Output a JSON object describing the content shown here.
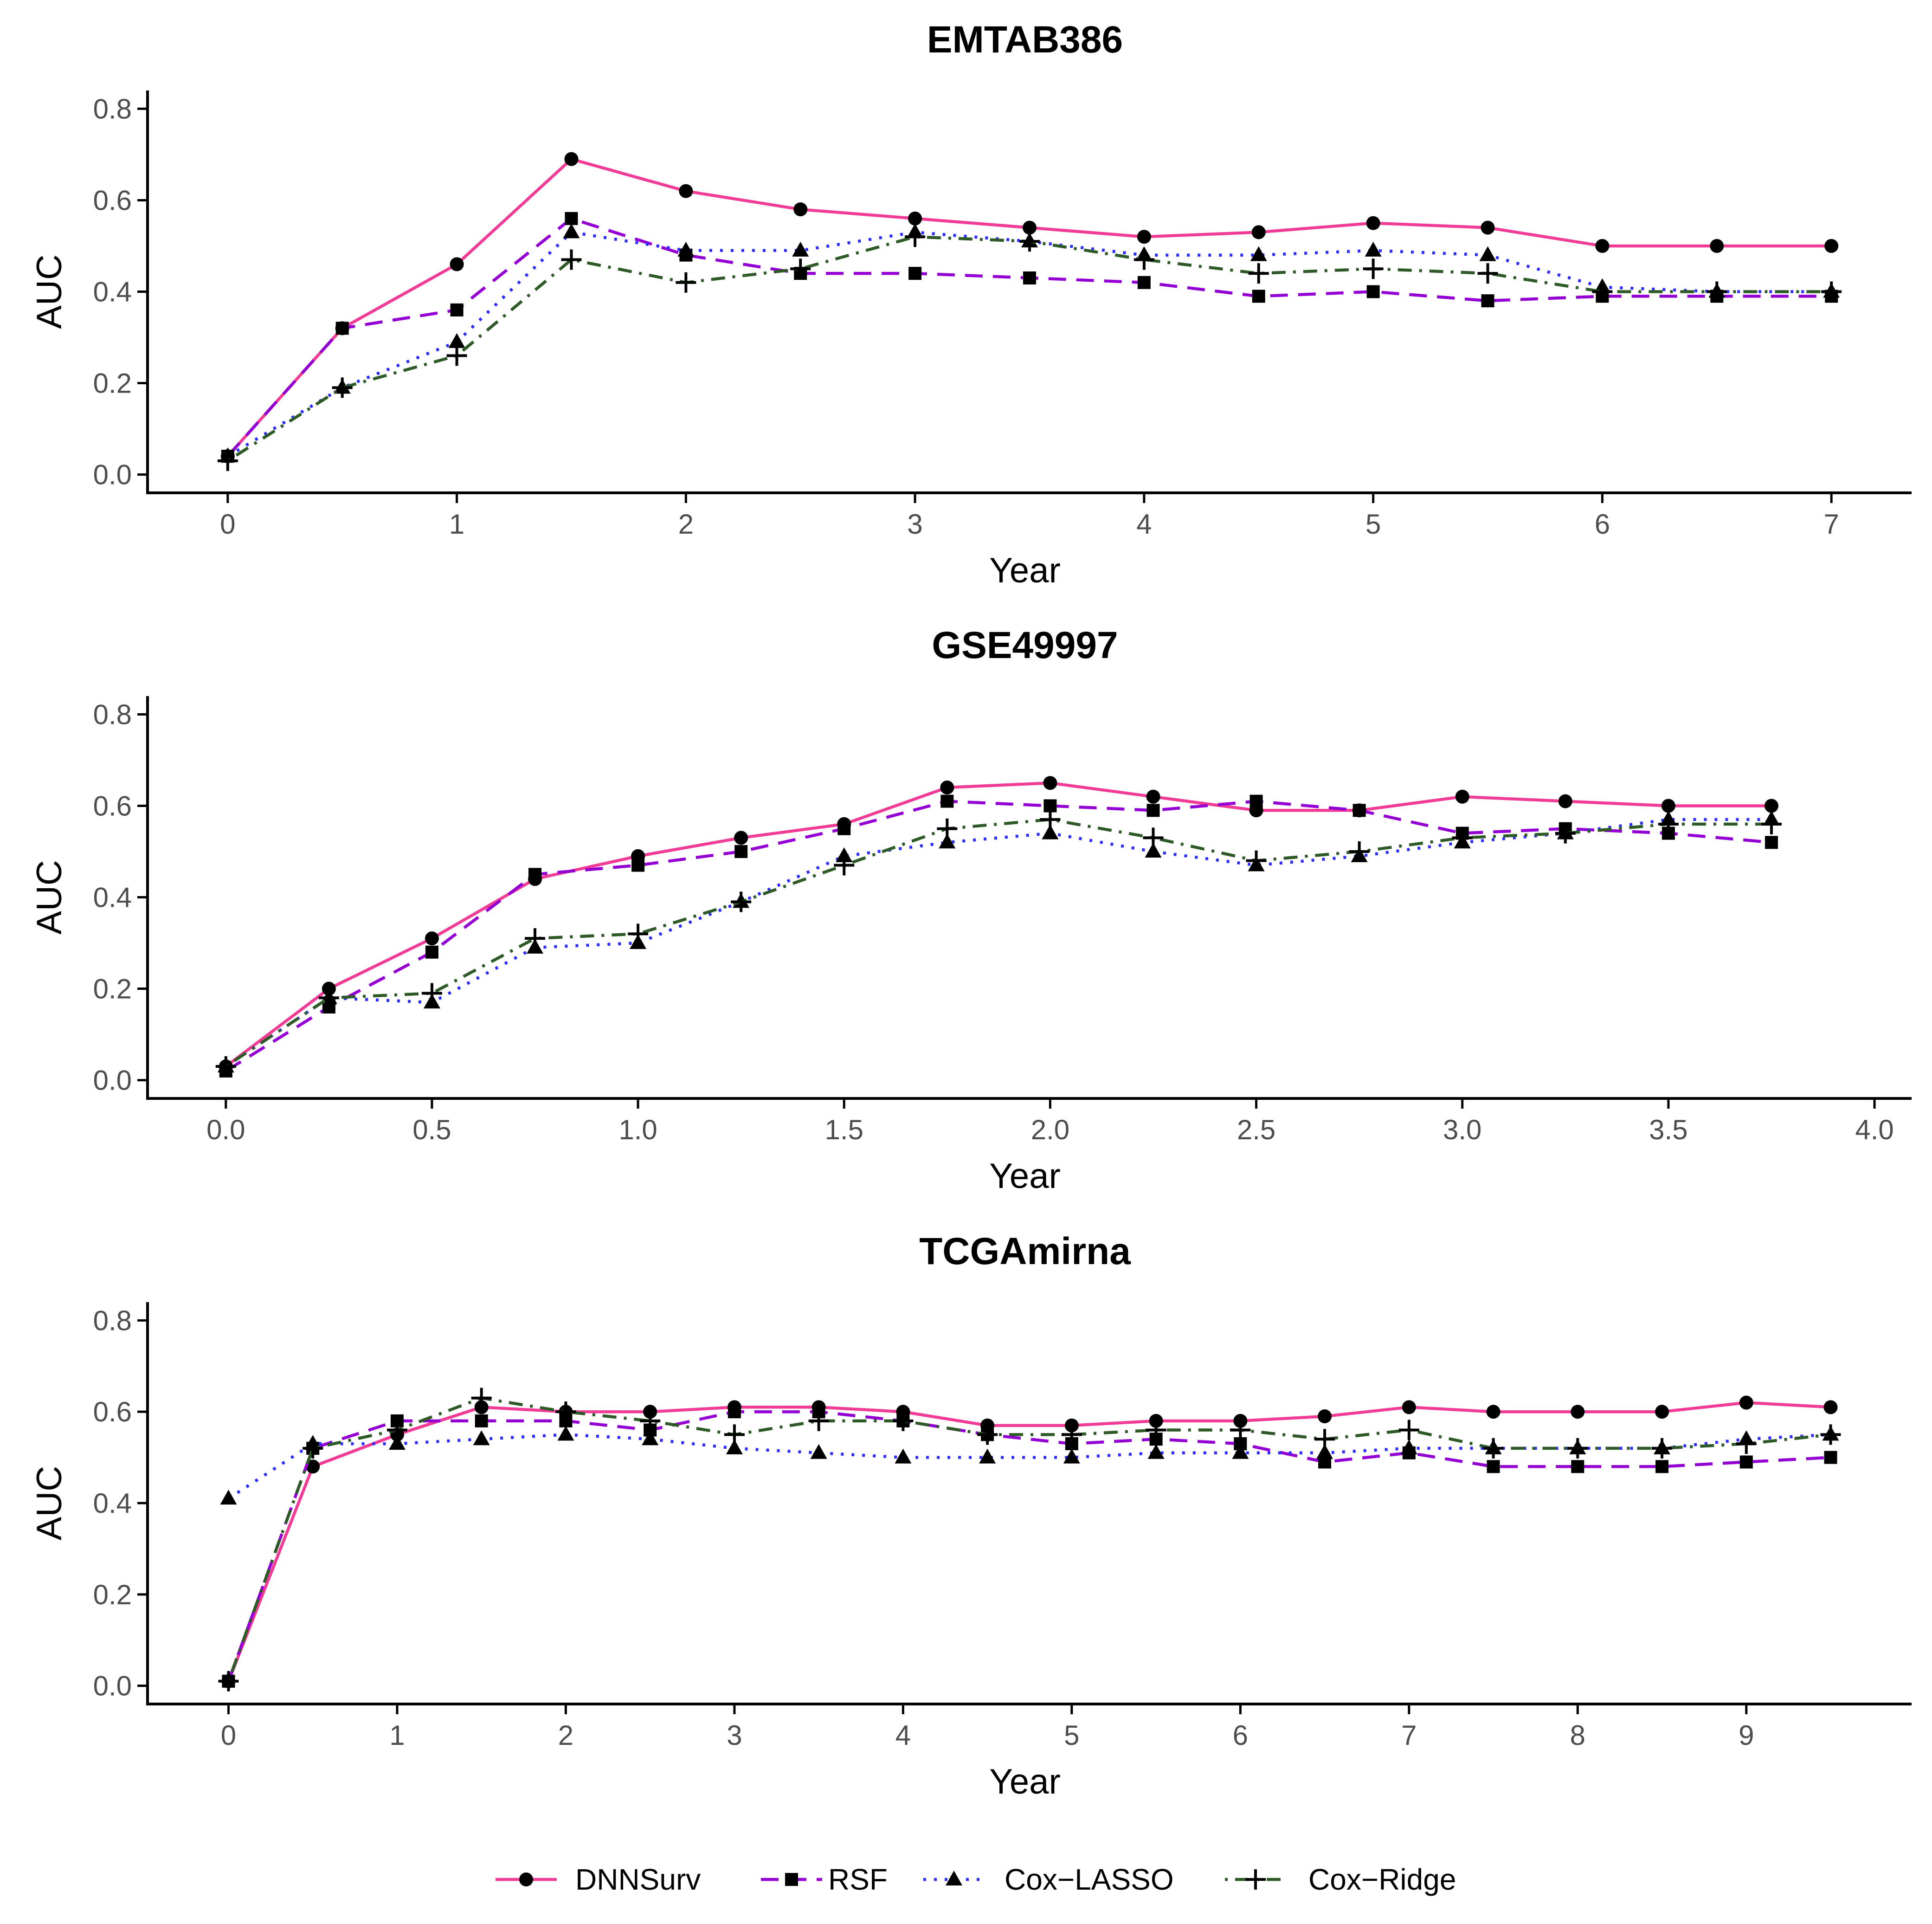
{
  "figure": {
    "legend_position": "bottom"
  },
  "style": {
    "axis_color": "#000000",
    "tick_label_color": "#4d4d4d",
    "series_styles": [
      {
        "name": "DNNSurv",
        "color": "#f03c96",
        "dash": "solid",
        "marker": "circle"
      },
      {
        "name": "RSF",
        "color": "#9400d3",
        "dash": "dashed",
        "marker": "square"
      },
      {
        "name": "Cox−LASSO",
        "color": "#2c2cff",
        "dash": "dotted",
        "marker": "triangle"
      },
      {
        "name": "Cox−Ridge",
        "color": "#2e5a27",
        "dash": "dotdash",
        "marker": "plus"
      }
    ]
  },
  "legend": [
    "DNNSurv",
    "RSF",
    "Cox−LASSO",
    "Cox−Ridge"
  ],
  "chart_data": [
    {
      "type": "line",
      "title": "EMTAB386",
      "xlabel": "Year",
      "ylabel": "AUC",
      "xlim": [
        -0.35,
        7.35
      ],
      "ylim": [
        -0.04,
        0.84
      ],
      "xticks": [
        0,
        1,
        2,
        3,
        4,
        5,
        6,
        7
      ],
      "xtick_labels": [
        "0",
        "1",
        "2",
        "3",
        "4",
        "5",
        "6",
        "7"
      ],
      "yticks": [
        0.0,
        0.2,
        0.4,
        0.6,
        0.8
      ],
      "ytick_labels": [
        "0.0",
        "0.2",
        "0.4",
        "0.6",
        "0.8"
      ],
      "grid": false,
      "x": [
        0,
        0.5,
        1,
        1.5,
        2,
        2.5,
        3,
        3.5,
        4,
        4.5,
        5,
        5.5,
        6,
        6.5,
        7
      ],
      "series": [
        {
          "name": "DNNSurv",
          "values": [
            0.04,
            0.32,
            0.46,
            0.69,
            0.62,
            0.58,
            0.56,
            0.54,
            0.52,
            0.53,
            0.55,
            0.54,
            0.5,
            0.5,
            0.5
          ]
        },
        {
          "name": "RSF",
          "values": [
            0.04,
            0.32,
            0.36,
            0.56,
            0.48,
            0.44,
            0.44,
            0.43,
            0.42,
            0.39,
            0.4,
            0.38,
            0.39,
            0.39,
            0.39
          ]
        },
        {
          "name": "Cox−LASSO",
          "values": [
            0.04,
            0.19,
            0.29,
            0.53,
            0.49,
            0.49,
            0.53,
            0.51,
            0.48,
            0.48,
            0.49,
            0.48,
            0.41,
            0.4,
            0.4
          ]
        },
        {
          "name": "Cox−Ridge",
          "values": [
            0.03,
            0.19,
            0.26,
            0.47,
            0.42,
            0.45,
            0.52,
            0.51,
            0.47,
            0.44,
            0.45,
            0.44,
            0.4,
            0.4,
            0.4
          ]
        }
      ]
    },
    {
      "type": "line",
      "title": "GSE49997",
      "xlabel": "Year",
      "ylabel": "AUC",
      "xlim": [
        -0.19,
        4.09
      ],
      "ylim": [
        -0.04,
        0.84
      ],
      "xticks": [
        0.0,
        0.5,
        1.0,
        1.5,
        2.0,
        2.5,
        3.0,
        3.5,
        4.0
      ],
      "xtick_labels": [
        "0.0",
        "0.5",
        "1.0",
        "1.5",
        "2.0",
        "2.5",
        "3.0",
        "3.5",
        "4.0"
      ],
      "yticks": [
        0.0,
        0.2,
        0.4,
        0.6,
        0.8
      ],
      "ytick_labels": [
        "0.0",
        "0.2",
        "0.4",
        "0.6",
        "0.8"
      ],
      "grid": false,
      "x": [
        0,
        0.25,
        0.5,
        0.75,
        1.0,
        1.25,
        1.5,
        1.75,
        2.0,
        2.25,
        2.5,
        2.75,
        3.0,
        3.25,
        3.5,
        3.75
      ],
      "series": [
        {
          "name": "DNNSurv",
          "values": [
            0.03,
            0.2,
            0.31,
            0.44,
            0.49,
            0.53,
            0.56,
            0.64,
            0.65,
            0.62,
            0.59,
            0.59,
            0.62,
            0.61,
            0.6,
            0.6
          ]
        },
        {
          "name": "RSF",
          "values": [
            0.02,
            0.16,
            0.28,
            0.45,
            0.47,
            0.5,
            0.55,
            0.61,
            0.6,
            0.59,
            0.61,
            0.59,
            0.54,
            0.55,
            0.54,
            0.52
          ]
        },
        {
          "name": "Cox−LASSO",
          "values": [
            0.03,
            0.18,
            0.17,
            0.29,
            0.3,
            0.39,
            0.49,
            0.52,
            0.54,
            0.5,
            0.47,
            0.49,
            0.52,
            0.54,
            0.57,
            0.57
          ]
        },
        {
          "name": "Cox−Ridge",
          "values": [
            0.03,
            0.18,
            0.19,
            0.31,
            0.32,
            0.39,
            0.47,
            0.55,
            0.57,
            0.53,
            0.48,
            0.5,
            0.53,
            0.54,
            0.56,
            0.56
          ]
        }
      ]
    },
    {
      "type": "line",
      "title": "TCGAmirna",
      "xlabel": "Year",
      "ylabel": "AUC",
      "xlim": [
        -0.48,
        9.98
      ],
      "ylim": [
        -0.04,
        0.84
      ],
      "xticks": [
        0,
        1,
        2,
        3,
        4,
        5,
        6,
        7,
        8,
        9
      ],
      "xtick_labels": [
        "0",
        "1",
        "2",
        "3",
        "4",
        "5",
        "6",
        "7",
        "8",
        "9"
      ],
      "yticks": [
        0.0,
        0.2,
        0.4,
        0.6,
        0.8
      ],
      "ytick_labels": [
        "0.0",
        "0.2",
        "0.4",
        "0.6",
        "0.8"
      ],
      "grid": false,
      "x": [
        0,
        0.5,
        1,
        1.5,
        2,
        2.5,
        3,
        3.5,
        4,
        4.5,
        5,
        5.5,
        6,
        6.5,
        7,
        7.5,
        8,
        8.5,
        9,
        9.5
      ],
      "series": [
        {
          "name": "DNNSurv",
          "values": [
            0.01,
            0.48,
            0.55,
            0.61,
            0.6,
            0.6,
            0.61,
            0.61,
            0.6,
            0.57,
            0.57,
            0.58,
            0.58,
            0.59,
            0.61,
            0.6,
            0.6,
            0.6,
            0.62,
            0.61
          ]
        },
        {
          "name": "RSF",
          "values": [
            0.01,
            0.52,
            0.58,
            0.58,
            0.58,
            0.56,
            0.6,
            0.6,
            0.58,
            0.55,
            0.53,
            0.54,
            0.53,
            0.49,
            0.51,
            0.48,
            0.48,
            0.48,
            0.49,
            0.5
          ]
        },
        {
          "name": "Cox−LASSO",
          "values": [
            0.41,
            0.53,
            0.53,
            0.54,
            0.55,
            0.54,
            0.52,
            0.51,
            0.5,
            0.5,
            0.5,
            0.51,
            0.51,
            0.51,
            0.52,
            0.52,
            0.52,
            0.52,
            0.54,
            0.55
          ]
        },
        {
          "name": "Cox−Ridge",
          "values": [
            0.01,
            0.52,
            0.56,
            0.63,
            0.6,
            0.58,
            0.55,
            0.58,
            0.58,
            0.55,
            0.55,
            0.56,
            0.56,
            0.54,
            0.56,
            0.52,
            0.52,
            0.52,
            0.53,
            0.55
          ]
        }
      ]
    }
  ]
}
